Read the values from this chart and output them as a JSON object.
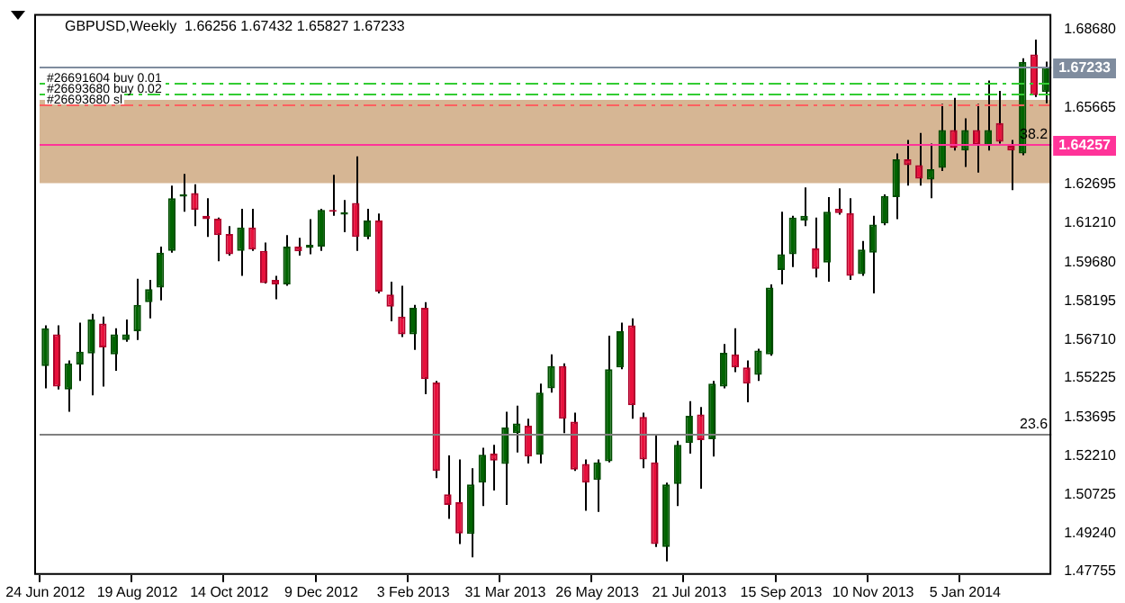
{
  "chart_data": {
    "type": "candlestick",
    "title": "GBPUSD,Weekly  1.66256 1.67432 1.65827 1.67233",
    "categories": [
      "24 Jun 2012",
      null,
      null,
      null,
      null,
      null,
      null,
      null,
      "19 Aug 2012",
      null,
      null,
      null,
      null,
      null,
      null,
      null,
      "14 Oct 2012",
      null,
      null,
      null,
      null,
      null,
      null,
      null,
      "9 Dec 2012",
      null,
      null,
      null,
      null,
      null,
      null,
      null,
      "3 Feb 2013",
      null,
      null,
      null,
      null,
      null,
      null,
      null,
      "31 Mar 2013",
      null,
      null,
      null,
      null,
      null,
      null,
      null,
      "26 May 2013",
      null,
      null,
      null,
      null,
      null,
      null,
      null,
      "21 Jul 2013",
      null,
      null,
      null,
      null,
      null,
      null,
      null,
      "15 Sep 2013",
      null,
      null,
      null,
      null,
      null,
      null,
      null,
      "10 Nov 2013",
      null,
      null,
      null,
      null,
      null,
      null,
      null,
      "5 Jan 2014",
      null,
      null,
      null,
      null,
      null,
      null,
      null
    ],
    "ohlc": [
      [
        1.5568,
        1.5725,
        1.5482,
        1.5714
      ],
      [
        1.5691,
        1.5725,
        1.5478,
        1.5489
      ],
      [
        1.5478,
        1.559,
        1.5392,
        1.5579
      ],
      [
        1.5574,
        1.5736,
        1.5511,
        1.5624
      ],
      [
        1.5617,
        1.577,
        1.5455,
        1.5748
      ],
      [
        1.5732,
        1.5759,
        1.5489,
        1.564
      ],
      [
        1.5613,
        1.5714,
        1.555,
        1.5691
      ],
      [
        1.5669,
        1.5748,
        1.5662,
        1.5691
      ],
      [
        1.5703,
        1.5905,
        1.5669,
        1.5804
      ],
      [
        1.5815,
        1.5901,
        1.5752,
        1.5865
      ],
      [
        1.5871,
        1.6029,
        1.5822,
        1.6006
      ],
      [
        1.6013,
        1.6265,
        1.6006,
        1.6216
      ],
      [
        1.6222,
        1.631,
        1.6164,
        1.6231
      ],
      [
        1.6236,
        1.627,
        1.6108,
        1.6171
      ],
      [
        1.6148,
        1.6216,
        1.6067,
        1.6135
      ],
      [
        1.6137,
        1.6141,
        1.5973,
        1.6074
      ],
      [
        1.6078,
        1.6108,
        1.5995,
        1.6
      ],
      [
        1.6013,
        1.6175,
        1.5916,
        1.6103
      ],
      [
        1.6103,
        1.6175,
        1.6013,
        1.6018
      ],
      [
        1.6013,
        1.6045,
        1.5887,
        1.5889
      ],
      [
        1.5901,
        1.5916,
        1.5826,
        1.5883
      ],
      [
        1.5883,
        1.6074,
        1.5878,
        1.6029
      ],
      [
        1.6029,
        1.6063,
        1.5995,
        1.6011
      ],
      [
        1.6024,
        1.6135,
        1.6,
        1.6036
      ],
      [
        1.6029,
        1.6175,
        1.6013,
        1.6171
      ],
      [
        1.6171,
        1.6306,
        1.6148,
        1.6164
      ],
      [
        1.6153,
        1.6209,
        1.6085,
        1.6162
      ],
      [
        1.6198,
        1.6378,
        1.6013,
        1.6067
      ],
      [
        1.6067,
        1.6175,
        1.6058,
        1.613
      ],
      [
        1.613,
        1.6157,
        1.5849,
        1.5856
      ],
      [
        1.5844,
        1.5894,
        1.5741,
        1.5797
      ],
      [
        1.5759,
        1.5878,
        1.568,
        1.5691
      ],
      [
        1.5691,
        1.5804,
        1.5631,
        1.5793
      ],
      [
        1.5793,
        1.5815,
        1.546,
        1.5518
      ],
      [
        1.5505,
        1.5511,
        1.5136,
        1.5163
      ],
      [
        1.5073,
        1.5223,
        1.4978,
        1.5032
      ],
      [
        1.5043,
        1.5208,
        1.4881,
        1.4922
      ],
      [
        1.492,
        1.5174,
        1.483,
        1.5111
      ],
      [
        1.5118,
        1.5253,
        1.5028,
        1.5226
      ],
      [
        1.523,
        1.5264,
        1.5088,
        1.5203
      ],
      [
        1.519,
        1.5392,
        1.5032,
        1.5331
      ],
      [
        1.5309,
        1.5415,
        1.5235,
        1.5347
      ],
      [
        1.5338,
        1.5365,
        1.5192,
        1.5219
      ],
      [
        1.5226,
        1.55,
        1.5192,
        1.5466
      ],
      [
        1.5482,
        1.5613,
        1.5466,
        1.5568
      ],
      [
        1.5568,
        1.5579,
        1.5309,
        1.5365
      ],
      [
        1.5354,
        1.5388,
        1.5163,
        1.5169
      ],
      [
        1.519,
        1.5208,
        1.501,
        1.5118
      ],
      [
        1.5129,
        1.5208,
        1.5005,
        1.5196
      ],
      [
        1.5201,
        1.5685,
        1.5196,
        1.5556
      ],
      [
        1.5563,
        1.5736,
        1.5556,
        1.5703
      ],
      [
        1.5725,
        1.5752,
        1.5365,
        1.5417
      ],
      [
        1.5372,
        1.5388,
        1.5174,
        1.5208
      ],
      [
        1.5196,
        1.5302,
        1.487,
        1.4881
      ],
      [
        1.487,
        1.5118,
        1.4814,
        1.5111
      ],
      [
        1.5113,
        1.528,
        1.5028,
        1.5264
      ],
      [
        1.5271,
        1.5433,
        1.523,
        1.5376
      ],
      [
        1.5381,
        1.541,
        1.5095,
        1.5282
      ],
      [
        1.5286,
        1.5511,
        1.5219,
        1.55
      ],
      [
        1.5489,
        1.5653,
        1.5482,
        1.5619
      ],
      [
        1.5613,
        1.5714,
        1.5545,
        1.5563
      ],
      [
        1.5563,
        1.559,
        1.5428,
        1.55
      ],
      [
        1.5534,
        1.5635,
        1.5511,
        1.5628
      ],
      [
        1.5613,
        1.5883,
        1.5608,
        1.5871
      ],
      [
        1.5939,
        1.6164,
        1.5883,
        1.6
      ],
      [
        1.6,
        1.6148,
        1.595,
        1.6141
      ],
      [
        1.613,
        1.6258,
        1.6108,
        1.6148
      ],
      [
        1.6022,
        1.6141,
        1.591,
        1.5943
      ],
      [
        1.5968,
        1.622,
        1.5894,
        1.6164
      ],
      [
        1.6175,
        1.6254,
        1.6153,
        1.6159
      ],
      [
        1.6159,
        1.6216,
        1.5901,
        1.5916
      ],
      [
        1.5923,
        1.6051,
        1.5916,
        1.6018
      ],
      [
        1.6006,
        1.6148,
        1.5849,
        1.6114
      ],
      [
        1.6119,
        1.6231,
        1.6112,
        1.6225
      ],
      [
        1.622,
        1.6389,
        1.6135,
        1.6366
      ],
      [
        1.6366,
        1.6441,
        1.6265,
        1.6344
      ],
      [
        1.6344,
        1.6468,
        1.6265,
        1.6292
      ],
      [
        1.6288,
        1.6427,
        1.6216,
        1.6328
      ],
      [
        1.6333,
        1.658,
        1.6321,
        1.6479
      ],
      [
        1.6479,
        1.6603,
        1.64,
        1.6411
      ],
      [
        1.64,
        1.6524,
        1.6337,
        1.6479
      ],
      [
        1.6479,
        1.658,
        1.6315,
        1.6423
      ],
      [
        1.6418,
        1.667,
        1.64,
        1.6479
      ],
      [
        1.6506,
        1.663,
        1.6427,
        1.6434
      ],
      [
        1.6418,
        1.6441,
        1.6247,
        1.64
      ],
      [
        1.6389,
        1.6756,
        1.6382,
        1.6742
      ],
      [
        1.6771,
        1.6828,
        1.6607,
        1.6614
      ],
      [
        1.66256,
        1.67432,
        1.65827,
        1.67233
      ]
    ],
    "ylim": [
      1.4762,
      1.6927
    ],
    "yticks": [
      {
        "value": 1.6868,
        "label": "1.68680"
      },
      1.65665,
      1.62695,
      {
        "value": 1.6121,
        "label": "1.61210"
      },
      {
        "value": 1.5968,
        "label": "1.59680"
      },
      1.58195,
      {
        "value": 1.5671,
        "label": "1.56710"
      },
      1.55225,
      1.53695,
      {
        "value": 1.5221,
        "label": "1.52210"
      },
      1.50725,
      {
        "value": 1.4924,
        "label": "1.49240"
      },
      1.47755
    ],
    "ref_lines": [
      {
        "axis": "y",
        "value": 1.67233,
        "label": "1.67233",
        "color": "#7f8c9e",
        "line_style": "solid"
      },
      {
        "axis": "y",
        "value": 1.6661,
        "label": "#26691604 buy 0.01",
        "color": "#33cc33",
        "line_style": "dashed"
      },
      {
        "axis": "y",
        "value": 1.6623,
        "label": "#26693680 buy 0.02",
        "color": "#33cc33",
        "line_style": "dashed"
      },
      {
        "axis": "y",
        "value": 1.658,
        "label": "#26693680 sl",
        "color": "#ff6060",
        "line_style": "dashed"
      },
      {
        "axis": "y",
        "value": 1.64257,
        "label": "1.64257",
        "color": "#ff3399",
        "line_style": "solid"
      },
      {
        "axis": "y",
        "value": 1.5309,
        "color": "#808080",
        "line_style": "solid"
      }
    ],
    "bands": [
      {
        "axis": "y",
        "from": 1.6274,
        "to": 1.6596,
        "color": "#d2ae88"
      }
    ],
    "annotations": [
      {
        "text": "38.2",
        "y": 1.64257
      },
      {
        "text": "23.6",
        "y": 1.5309
      }
    ]
  }
}
